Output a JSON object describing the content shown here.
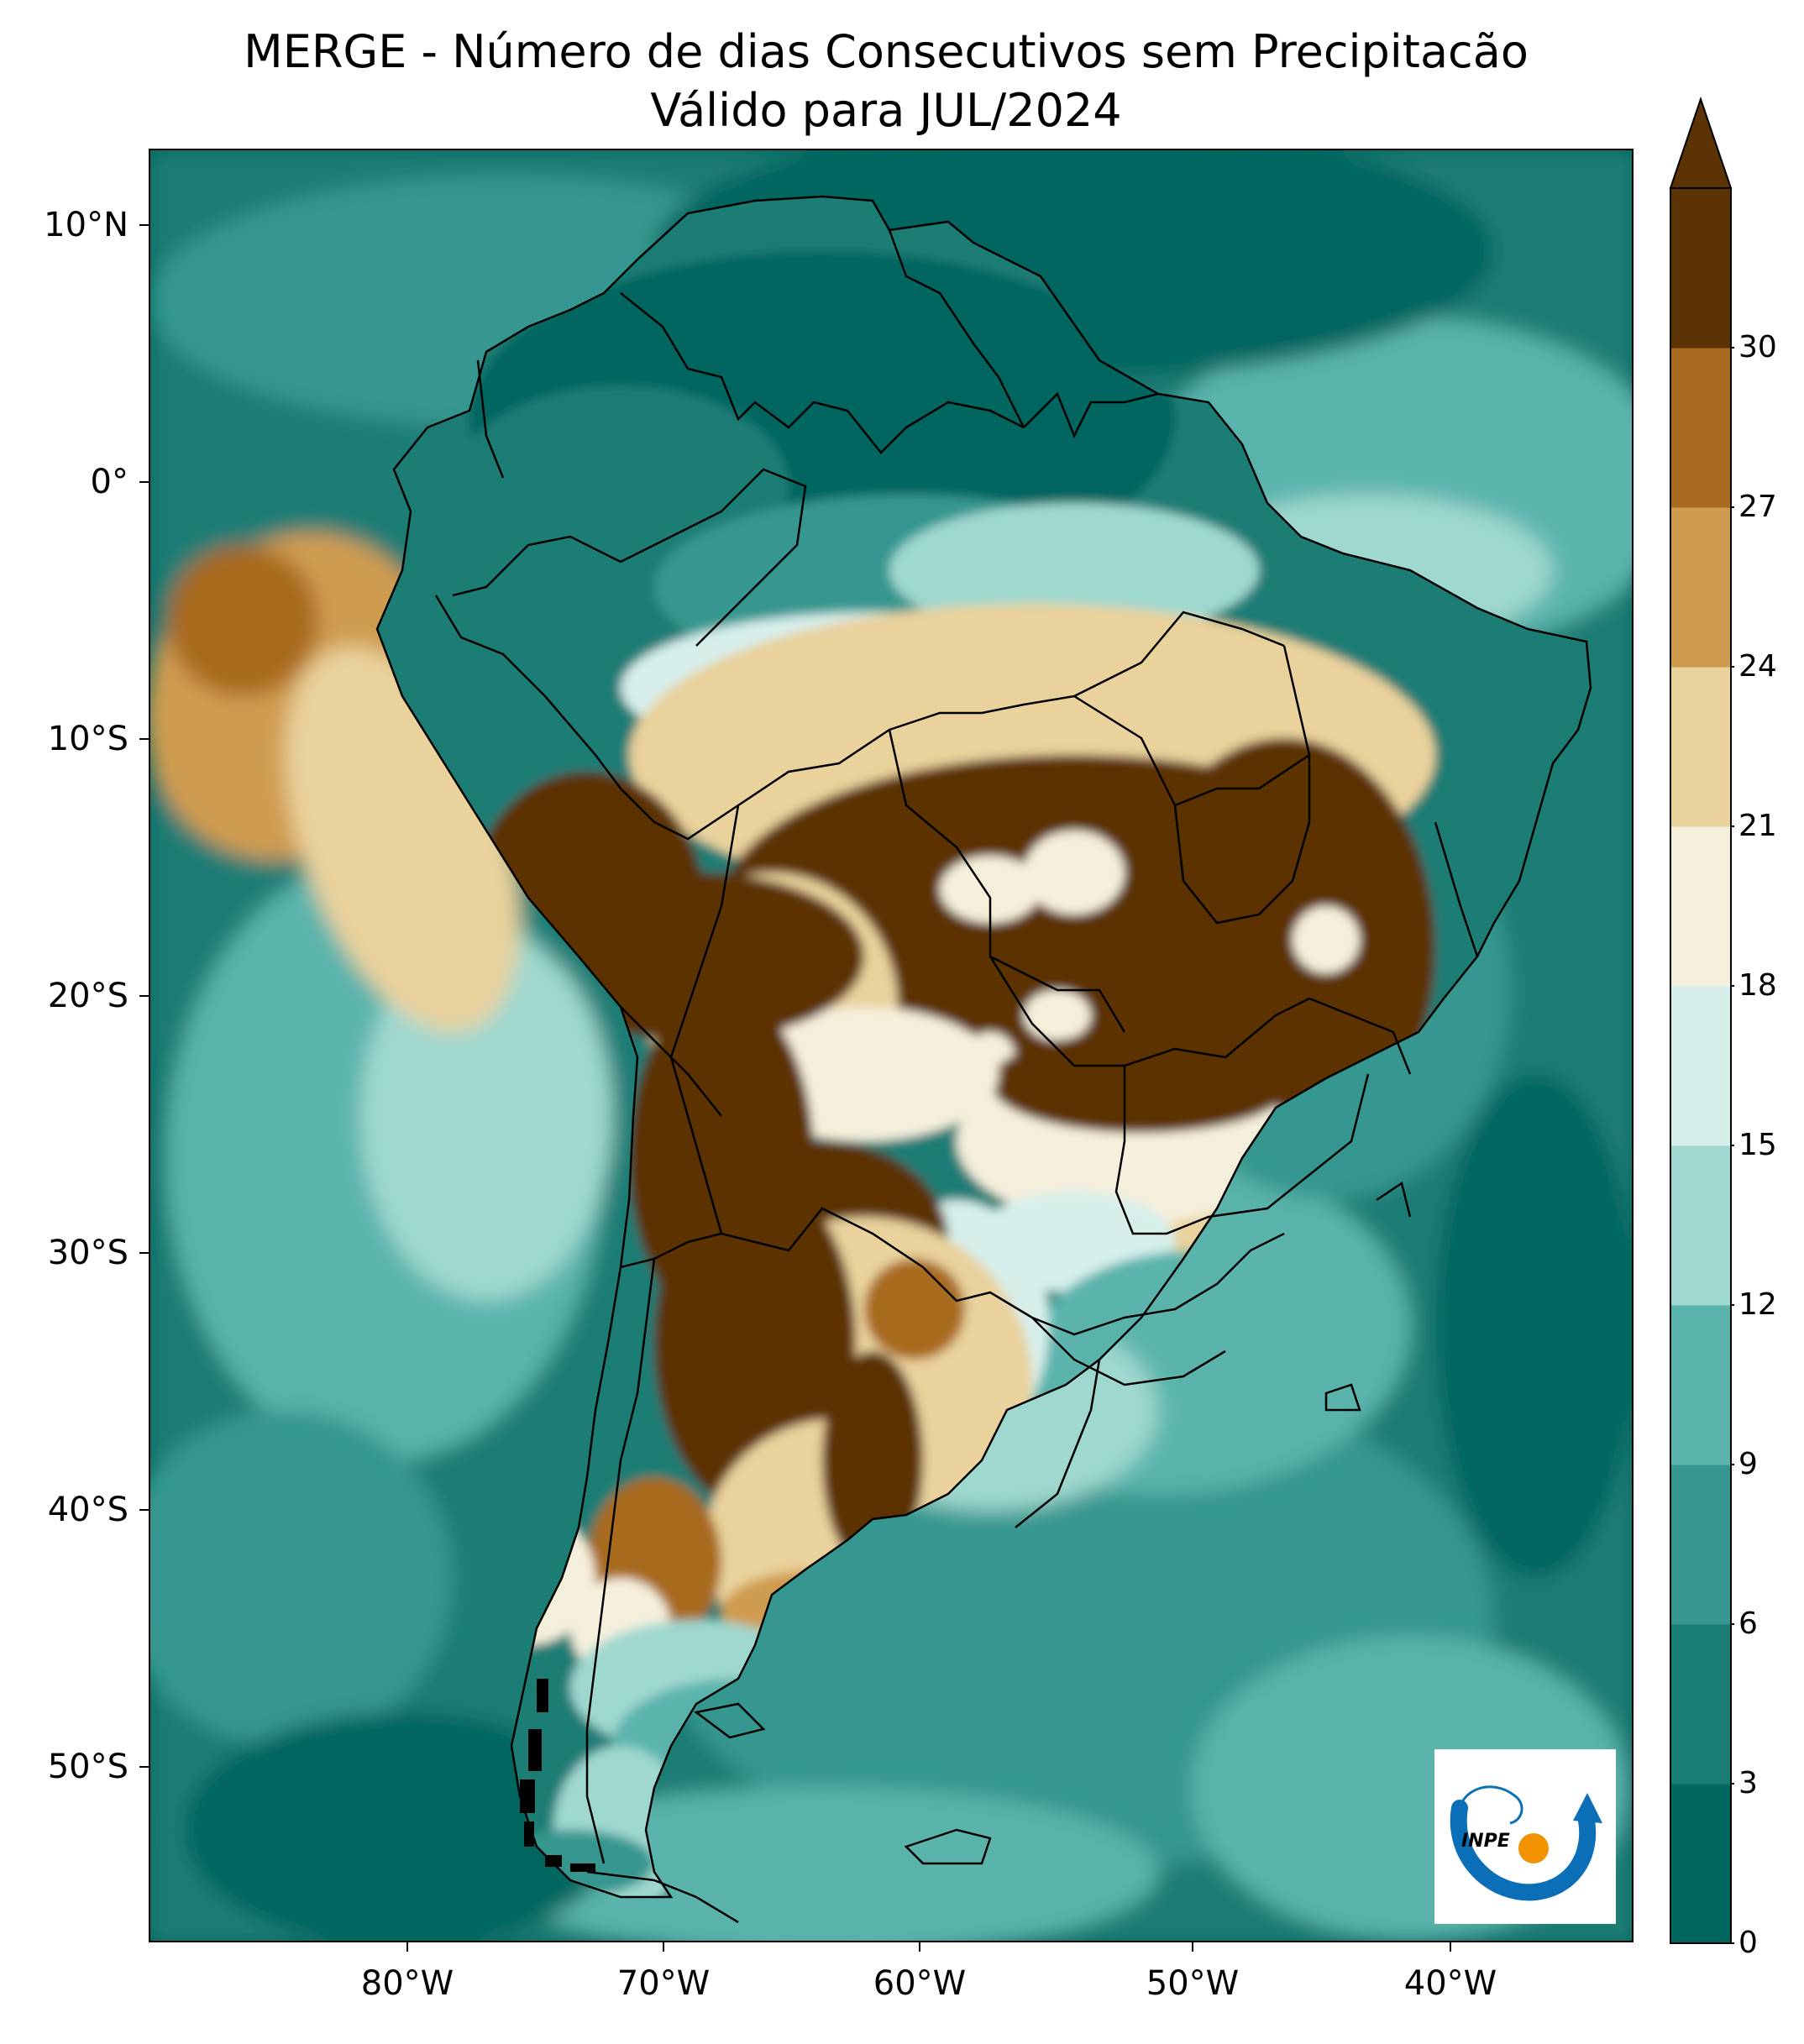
{
  "title": {
    "line1": "MERGE - Número de dias Consecutivos sem Precipitacão",
    "line2": "Válido para JUL/2024"
  },
  "map": {
    "lat_labels": [
      "10°N",
      "0°",
      "10°S",
      "20°S",
      "30°S",
      "40°S",
      "50°S"
    ],
    "lon_labels": [
      "80°W",
      "70°W",
      "60°W",
      "50°W",
      "40°W"
    ],
    "lat_values": [
      10,
      0,
      -10,
      -20,
      -30,
      -40,
      -50
    ],
    "lon_values": [
      -80,
      -70,
      -60,
      -50,
      -40
    ],
    "extent": {
      "lon_min": -90,
      "lon_max": -32,
      "lat_min": -57,
      "lat_max": 13
    }
  },
  "colorbar": {
    "ticks": [
      "0",
      "3",
      "6",
      "9",
      "12",
      "15",
      "18",
      "21",
      "24",
      "27",
      "30"
    ],
    "colors": [
      "#01665e",
      "#1a7d74",
      "#35978f",
      "#5ab4ac",
      "#9fd8cf",
      "#d6efeb",
      "#f5f0dc",
      "#e9d29b",
      "#cf9c4f",
      "#a86a1e",
      "#5b3304"
    ],
    "extend": "max"
  },
  "logo": {
    "text": "INPE"
  }
}
